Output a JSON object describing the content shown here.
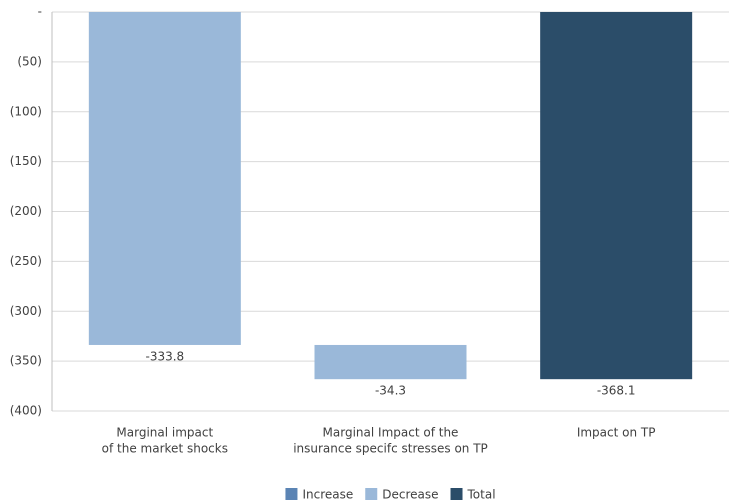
{
  "chart_data": {
    "type": "waterfall",
    "categories": [
      [
        "Marginal impact",
        "of the market shocks"
      ],
      [
        "Marginal Impact of the",
        "insurance specifc stresses on TP"
      ],
      [
        "Impact on TP"
      ]
    ],
    "values": [
      -333.8,
      -34.3,
      -368.1
    ],
    "is_total": [
      false,
      false,
      true
    ],
    "legend": [
      {
        "name": "Increase",
        "color": "#5b84b4"
      },
      {
        "name": "Decrease",
        "color": "#9ab8d9"
      },
      {
        "name": "Total",
        "color": "#2b4d69"
      }
    ],
    "ylim": [
      -400,
      0
    ],
    "yticks": [
      {
        "value": 0,
        "label": "-"
      },
      {
        "value": -50,
        "label": "(50)"
      },
      {
        "value": -100,
        "label": "(100)"
      },
      {
        "value": -150,
        "label": "(150)"
      },
      {
        "value": -200,
        "label": "(200)"
      },
      {
        "value": -250,
        "label": "(250)"
      },
      {
        "value": -300,
        "label": "(300)"
      },
      {
        "value": -350,
        "label": "(350)"
      },
      {
        "value": -400,
        "label": "(400)"
      }
    ],
    "grid": true
  }
}
